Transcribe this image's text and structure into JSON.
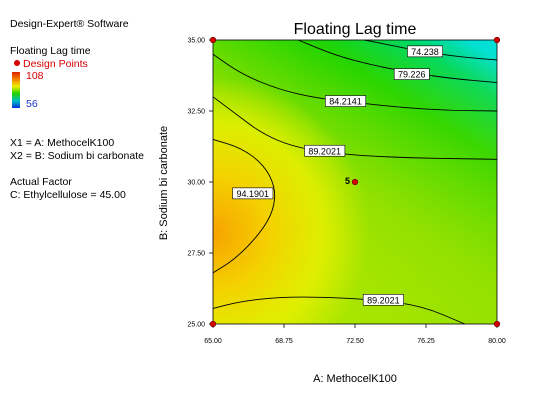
{
  "app": {
    "software": "Design-Expert® Software"
  },
  "legend": {
    "response_name": "Floating Lag time",
    "design_points_label": "Design Points",
    "max_label": "108",
    "min_label": "56",
    "design_point_color": "#d40000"
  },
  "factors": {
    "x1": "X1 = A: MethocelK100",
    "x2": "X2 = B: Sodium bi carbonate",
    "actual_title": "Actual Factor",
    "actual_value": "C: Ethylcellulose = 45.00"
  },
  "chart_data": {
    "type": "contour",
    "title": "Floating Lag time",
    "xlabel": "A: MethocelK100",
    "ylabel": "B: Sodium bi carbonate",
    "xlim": [
      65.0,
      80.0
    ],
    "ylim": [
      25.0,
      35.0
    ],
    "x_ticks": [
      "65.00",
      "68.75",
      "72.50",
      "76.25",
      "80.00"
    ],
    "y_ticks": [
      "25.00",
      "27.50",
      "30.00",
      "32.50",
      "35.00"
    ],
    "contours": [
      {
        "label": "74.238",
        "points": [
          [
            73.0,
            35.0
          ],
          [
            74.5,
            34.8
          ],
          [
            76.0,
            34.6
          ],
          [
            77.5,
            34.45
          ],
          [
            79.0,
            34.35
          ],
          [
            80.0,
            34.3
          ]
        ],
        "label_at": [
          76.2,
          34.6
        ]
      },
      {
        "label": "79.226",
        "points": [
          [
            69.5,
            35.0
          ],
          [
            71.5,
            34.45
          ],
          [
            73.5,
            34.1
          ],
          [
            75.5,
            33.85
          ],
          [
            77.5,
            33.65
          ],
          [
            80.0,
            33.5
          ]
        ],
        "label_at": [
          75.5,
          33.8
        ]
      },
      {
        "label": "84.2141",
        "points": [
          [
            65.0,
            34.5
          ],
          [
            66.5,
            33.8
          ],
          [
            68.5,
            33.25
          ],
          [
            70.5,
            32.95
          ],
          [
            72.5,
            32.8
          ],
          [
            75.0,
            32.62
          ],
          [
            77.5,
            32.52
          ],
          [
            80.0,
            32.5
          ]
        ],
        "label_at": [
          72.0,
          32.85
        ]
      },
      {
        "label": "89.2021",
        "points": [
          [
            65.0,
            33.0
          ],
          [
            66.2,
            32.4
          ],
          [
            67.6,
            31.7
          ],
          [
            69.2,
            31.25
          ],
          [
            71.0,
            31.05
          ],
          [
            73.0,
            30.92
          ],
          [
            75.5,
            30.85
          ],
          [
            78.0,
            30.82
          ],
          [
            80.0,
            30.8
          ]
        ],
        "label_at": [
          70.9,
          31.1
        ]
      },
      {
        "label": "94.1901",
        "points": [
          [
            65.0,
            31.5
          ],
          [
            66.5,
            31.2
          ],
          [
            67.7,
            30.6
          ],
          [
            68.3,
            29.8
          ],
          [
            68.2,
            29.0
          ],
          [
            67.5,
            28.2
          ],
          [
            66.2,
            27.3
          ],
          [
            65.0,
            26.8
          ]
        ],
        "label_at": [
          67.1,
          29.6
        ]
      },
      {
        "label": "89.2021",
        "points": [
          [
            65.0,
            25.55
          ],
          [
            66.5,
            25.8
          ],
          [
            68.5,
            25.95
          ],
          [
            71.0,
            25.95
          ],
          [
            73.5,
            25.85
          ],
          [
            76.0,
            25.65
          ],
          [
            78.3,
            25.0
          ]
        ],
        "label_at": [
          74.0,
          25.85
        ]
      }
    ],
    "design_points": [
      {
        "x": 65.0,
        "y": 35.0
      },
      {
        "x": 80.0,
        "y": 35.0
      },
      {
        "x": 72.5,
        "y": 30.0,
        "label": "5"
      },
      {
        "x": 65.0,
        "y": 25.0
      },
      {
        "x": 80.0,
        "y": 25.0
      }
    ]
  }
}
